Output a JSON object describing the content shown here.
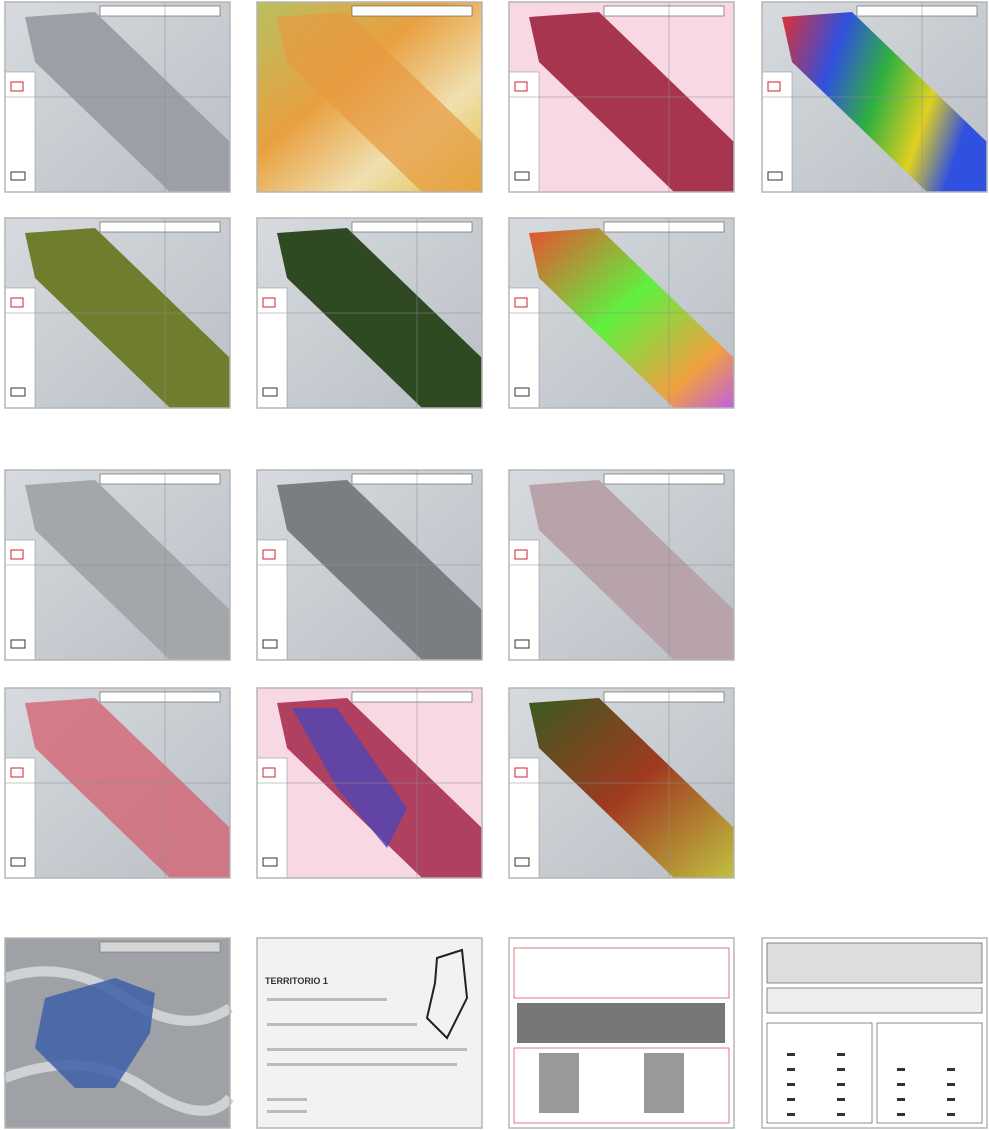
{
  "panels": {
    "territory_label": "TERRITORIO 1"
  }
}
